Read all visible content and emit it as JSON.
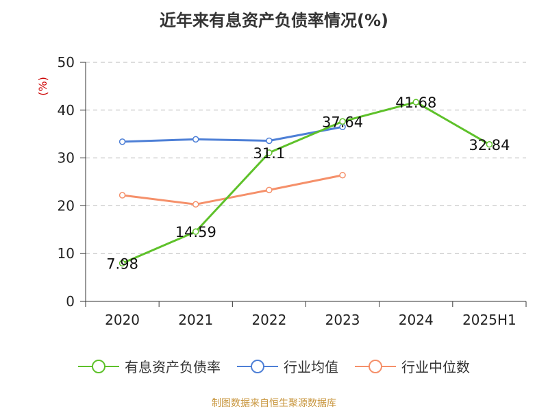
{
  "chart_data": {
    "type": "line",
    "title": "近年来有息资产负债率情况(%)",
    "ylabel": "(%)",
    "ylim": [
      0,
      50
    ],
    "yticks": [
      0,
      10,
      20,
      30,
      40,
      50
    ],
    "grid": true,
    "legend_position": "bottom",
    "categories": [
      "2020",
      "2021",
      "2022",
      "2023",
      "2024",
      "2025H1"
    ],
    "series": [
      {
        "name": "有息资产负债率",
        "color": "#5ec12a",
        "values": [
          7.98,
          14.59,
          31.1,
          37.64,
          41.68,
          32.84
        ],
        "labels": [
          "7.98",
          "14.59",
          "31.1",
          "37.64",
          "41.68",
          "32.84"
        ]
      },
      {
        "name": "行业均值",
        "color": "#4d7fd6",
        "values": [
          33.4,
          33.9,
          33.6,
          36.5,
          null,
          null
        ]
      },
      {
        "name": "行业中位数",
        "color": "#f5906a",
        "values": [
          22.2,
          20.3,
          23.3,
          26.4,
          null,
          null
        ]
      }
    ]
  },
  "source": "制图数据来自恒生聚源数据库"
}
